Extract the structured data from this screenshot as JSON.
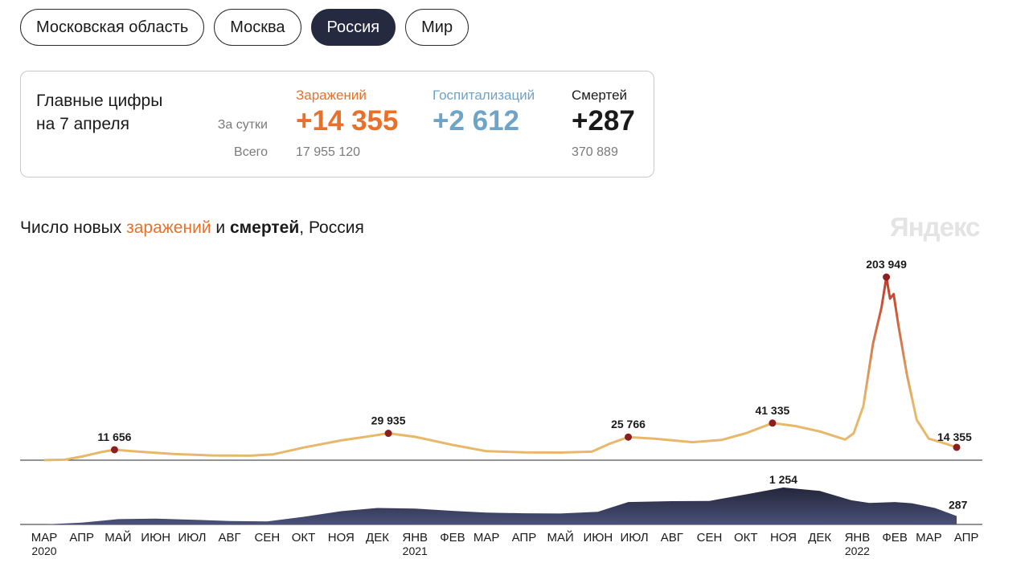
{
  "tabs": [
    {
      "label": "Московская область",
      "active": false
    },
    {
      "label": "Москва",
      "active": false
    },
    {
      "label": "Россия",
      "active": true
    },
    {
      "label": "Мир",
      "active": false
    }
  ],
  "summary": {
    "title_line1": "Главные цифры",
    "title_line2": "на 7 апреля",
    "daily_label": "За сутки",
    "total_label": "Всего",
    "infections": {
      "label": "Заражений",
      "daily": "+14 355",
      "total": "17 955 120"
    },
    "hospitalizations": {
      "label": "Госпитализаций",
      "daily": "+2 612"
    },
    "deaths": {
      "label": "Смертей",
      "daily": "+287",
      "total": "370 889"
    }
  },
  "chart_title": {
    "part1": "Число новых ",
    "infections_word": "заражений",
    "part2": " и ",
    "deaths_word": "смертей",
    "part3": ", Россия"
  },
  "brand": "Яндекс",
  "colors": {
    "infections": "#e8b86a",
    "infections_peak": "#c0392b",
    "deaths": "#4a5078",
    "marker": "#8b1e1e"
  },
  "chart_data": [
    {
      "type": "line",
      "name": "заражений",
      "x": [
        "2020-03-15",
        "2020-04-01",
        "2020-04-15",
        "2020-05-01",
        "2020-05-12",
        "2020-06-01",
        "2020-07-01",
        "2020-08-01",
        "2020-09-01",
        "2020-09-20",
        "2020-10-15",
        "2020-11-15",
        "2020-12-10",
        "2020-12-24",
        "2021-01-15",
        "2021-02-15",
        "2021-03-15",
        "2021-04-15",
        "2021-05-15",
        "2021-06-10",
        "2021-06-25",
        "2021-07-10",
        "2021-08-01",
        "2021-09-01",
        "2021-09-25",
        "2021-10-15",
        "2021-11-06",
        "2021-11-25",
        "2021-12-15",
        "2022-01-05",
        "2022-01-12",
        "2022-01-20",
        "2022-01-28",
        "2022-02-04",
        "2022-02-08",
        "2022-02-11",
        "2022-02-14",
        "2022-02-18",
        "2022-02-25",
        "2022-03-05",
        "2022-03-15",
        "2022-03-25",
        "2022-04-07"
      ],
      "y": [
        50,
        500,
        4000,
        9000,
        11656,
        9500,
        6800,
        5300,
        5000,
        6500,
        14000,
        22000,
        27000,
        29935,
        26000,
        17000,
        10000,
        8800,
        8500,
        9500,
        18500,
        25766,
        24000,
        20000,
        22500,
        30000,
        41335,
        38000,
        32000,
        23000,
        30000,
        60000,
        130000,
        170000,
        203949,
        180000,
        185000,
        150000,
        95000,
        45000,
        24000,
        20000,
        14355
      ],
      "annotations": [
        {
          "x": "2020-05-12",
          "value": 11656,
          "label": "11 656"
        },
        {
          "x": "2020-12-24",
          "value": 29935,
          "label": "29 935"
        },
        {
          "x": "2021-07-10",
          "value": 25766,
          "label": "25 766"
        },
        {
          "x": "2021-11-06",
          "value": 41335,
          "label": "41 335"
        },
        {
          "x": "2022-02-08",
          "value": 203949,
          "label": "203 949"
        },
        {
          "x": "2022-04-07",
          "value": 14355,
          "label": "14 355"
        }
      ]
    },
    {
      "type": "area",
      "name": "смертей",
      "x": [
        "2020-03-15",
        "2020-04-15",
        "2020-05-15",
        "2020-06-15",
        "2020-07-15",
        "2020-08-15",
        "2020-09-15",
        "2020-10-15",
        "2020-11-15",
        "2020-12-15",
        "2021-01-15",
        "2021-02-15",
        "2021-03-15",
        "2021-04-15",
        "2021-05-15",
        "2021-06-15",
        "2021-07-10",
        "2021-08-15",
        "2021-09-15",
        "2021-10-15",
        "2021-11-15",
        "2021-12-15",
        "2022-01-10",
        "2022-01-25",
        "2022-02-15",
        "2022-03-01",
        "2022-03-20",
        "2022-04-07"
      ],
      "y": [
        0,
        60,
        180,
        200,
        160,
        115,
        100,
        260,
        450,
        560,
        540,
        460,
        400,
        380,
        370,
        430,
        760,
        790,
        800,
        1020,
        1254,
        1140,
        820,
        730,
        760,
        720,
        560,
        287
      ],
      "annotations": [
        {
          "x": "2021-11-15",
          "value": 1254,
          "label": "1 254"
        },
        {
          "x": "2022-04-07",
          "value": 287,
          "label": "287"
        }
      ]
    }
  ],
  "x_axis": {
    "ticks": [
      {
        "label": "МАР",
        "date": "2020-03-15"
      },
      {
        "label": "АПР",
        "date": "2020-04-15"
      },
      {
        "label": "МАЙ",
        "date": "2020-05-15"
      },
      {
        "label": "ИЮН",
        "date": "2020-06-15"
      },
      {
        "label": "ИЮЛ",
        "date": "2020-07-15"
      },
      {
        "label": "АВГ",
        "date": "2020-08-15"
      },
      {
        "label": "СЕН",
        "date": "2020-09-15"
      },
      {
        "label": "ОКТ",
        "date": "2020-10-15"
      },
      {
        "label": "НОЯ",
        "date": "2020-11-15"
      },
      {
        "label": "ДЕК",
        "date": "2020-12-15"
      },
      {
        "label": "ЯНВ",
        "date": "2021-01-15"
      },
      {
        "label": "ФЕВ",
        "date": "2021-02-15"
      },
      {
        "label": "МАР",
        "date": "2021-03-15"
      },
      {
        "label": "АПР",
        "date": "2021-04-15"
      },
      {
        "label": "МАЙ",
        "date": "2021-05-15"
      },
      {
        "label": "ИЮН",
        "date": "2021-06-15"
      },
      {
        "label": "ИЮЛ",
        "date": "2021-07-15"
      },
      {
        "label": "АВГ",
        "date": "2021-08-15"
      },
      {
        "label": "СЕН",
        "date": "2021-09-15"
      },
      {
        "label": "ОКТ",
        "date": "2021-10-15"
      },
      {
        "label": "НОЯ",
        "date": "2021-11-15"
      },
      {
        "label": "ДЕК",
        "date": "2021-12-15"
      },
      {
        "label": "ЯНВ",
        "date": "2022-01-15"
      },
      {
        "label": "ФЕВ",
        "date": "2022-02-15"
      },
      {
        "label": "МАР",
        "date": "2022-03-15"
      },
      {
        "label": "АПР",
        "date": "2022-04-15"
      }
    ],
    "years": [
      {
        "label": "2020",
        "date": "2020-03-15"
      },
      {
        "label": "2021",
        "date": "2021-01-15"
      },
      {
        "label": "2022",
        "date": "2022-01-15"
      }
    ]
  }
}
